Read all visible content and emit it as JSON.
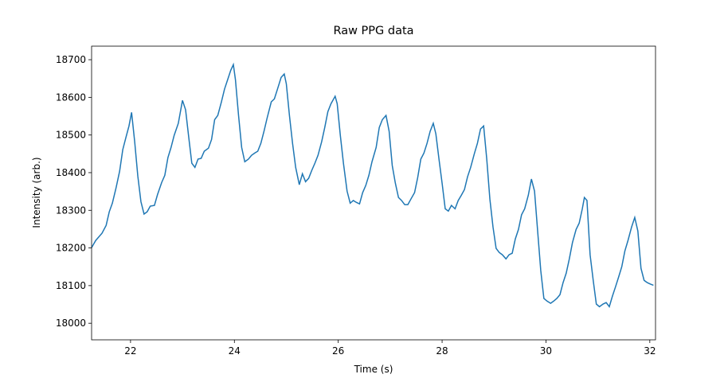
{
  "chart_data": {
    "type": "line",
    "title": "Raw PPG data",
    "x_label": "Time (s)",
    "y_label": "Intensity (arb.)",
    "x": [
      21.25,
      21.33,
      21.45,
      21.53,
      21.59,
      21.65,
      21.72,
      21.79,
      21.85,
      21.91,
      21.97,
      22.02,
      22.08,
      22.14,
      22.2,
      22.26,
      22.32,
      22.38,
      22.46,
      22.52,
      22.6,
      22.66,
      22.72,
      22.78,
      22.84,
      22.92,
      23.0,
      23.06,
      23.12,
      23.18,
      23.24,
      23.3,
      23.36,
      23.42,
      23.5,
      23.56,
      23.62,
      23.68,
      23.75,
      23.81,
      23.87,
      23.93,
      23.98,
      24.02,
      24.08,
      24.14,
      24.2,
      24.27,
      24.33,
      24.39,
      24.45,
      24.51,
      24.57,
      24.63,
      24.71,
      24.77,
      24.83,
      24.9,
      24.96,
      25.0,
      25.06,
      25.12,
      25.18,
      25.25,
      25.31,
      25.37,
      25.43,
      25.49,
      25.55,
      25.61,
      25.68,
      25.74,
      25.8,
      25.86,
      25.94,
      25.98,
      26.04,
      26.1,
      26.17,
      26.23,
      26.29,
      26.35,
      26.41,
      26.47,
      26.53,
      26.59,
      26.65,
      26.73,
      26.79,
      26.85,
      26.92,
      26.98,
      27.04,
      27.1,
      27.16,
      27.22,
      27.28,
      27.34,
      27.4,
      27.47,
      27.53,
      27.59,
      27.65,
      27.71,
      27.77,
      27.83,
      27.88,
      27.94,
      28.0,
      28.06,
      28.12,
      28.18,
      28.25,
      28.31,
      28.37,
      28.43,
      28.49,
      28.55,
      28.62,
      28.68,
      28.74,
      28.8,
      28.86,
      28.92,
      28.98,
      29.04,
      29.1,
      29.16,
      29.23,
      29.29,
      29.35,
      29.41,
      29.47,
      29.53,
      29.59,
      29.66,
      29.72,
      29.78,
      29.84,
      29.9,
      29.96,
      30.02,
      30.09,
      30.15,
      30.21,
      30.27,
      30.33,
      30.39,
      30.45,
      30.51,
      30.58,
      30.64,
      30.7,
      30.74,
      30.79,
      30.85,
      30.91,
      30.97,
      31.03,
      31.1,
      31.16,
      31.22,
      31.28,
      31.34,
      31.4,
      31.46,
      31.52,
      31.58,
      31.65,
      31.71,
      31.77,
      31.83,
      31.89,
      31.95,
      32.01,
      32.07
    ],
    "series": [
      {
        "name": "PPG",
        "color": "#1f77b4",
        "values": [
          18201,
          18220,
          18239,
          18260,
          18296,
          18319,
          18359,
          18404,
          18461,
          18493,
          18524,
          18560,
          18482,
          18391,
          18323,
          18290,
          18296,
          18311,
          18313,
          18342,
          18374,
          18393,
          18440,
          18467,
          18499,
          18531,
          18592,
          18567,
          18495,
          18425,
          18414,
          18436,
          18438,
          18457,
          18465,
          18488,
          18541,
          18552,
          18588,
          18622,
          18647,
          18672,
          18687,
          18647,
          18552,
          18467,
          18429,
          18436,
          18446,
          18452,
          18457,
          18478,
          18510,
          18545,
          18588,
          18596,
          18622,
          18653,
          18662,
          18636,
          18552,
          18478,
          18414,
          18368,
          18397,
          18376,
          18385,
          18406,
          18425,
          18446,
          18482,
          18520,
          18562,
          18583,
          18603,
          18583,
          18499,
          18425,
          18351,
          18319,
          18326,
          18321,
          18317,
          18347,
          18366,
          18393,
          18429,
          18467,
          18520,
          18541,
          18552,
          18510,
          18419,
          18372,
          18334,
          18326,
          18315,
          18315,
          18330,
          18347,
          18387,
          18436,
          18452,
          18478,
          18510,
          18531,
          18503,
          18436,
          18372,
          18304,
          18298,
          18313,
          18304,
          18326,
          18340,
          18355,
          18389,
          18414,
          18450,
          18478,
          18516,
          18524,
          18436,
          18330,
          18256,
          18199,
          18188,
          18182,
          18171,
          18182,
          18186,
          18224,
          18249,
          18288,
          18304,
          18340,
          18383,
          18351,
          18245,
          18140,
          18066,
          18059,
          18053,
          18059,
          18066,
          18076,
          18108,
          18133,
          18171,
          18214,
          18249,
          18266,
          18304,
          18334,
          18326,
          18182,
          18114,
          18051,
          18044,
          18051,
          18055,
          18044,
          18072,
          18097,
          18123,
          18150,
          18192,
          18220,
          18256,
          18281,
          18245,
          18146,
          18114,
          18108,
          18104,
          18101
        ]
      }
    ],
    "xlim": [
      21.25,
      32.11
    ],
    "ylim": [
      17956,
      18736
    ],
    "xticks": [
      22,
      24,
      26,
      28,
      30,
      32
    ],
    "yticks": [
      18000,
      18100,
      18200,
      18300,
      18400,
      18500,
      18600,
      18700
    ]
  }
}
